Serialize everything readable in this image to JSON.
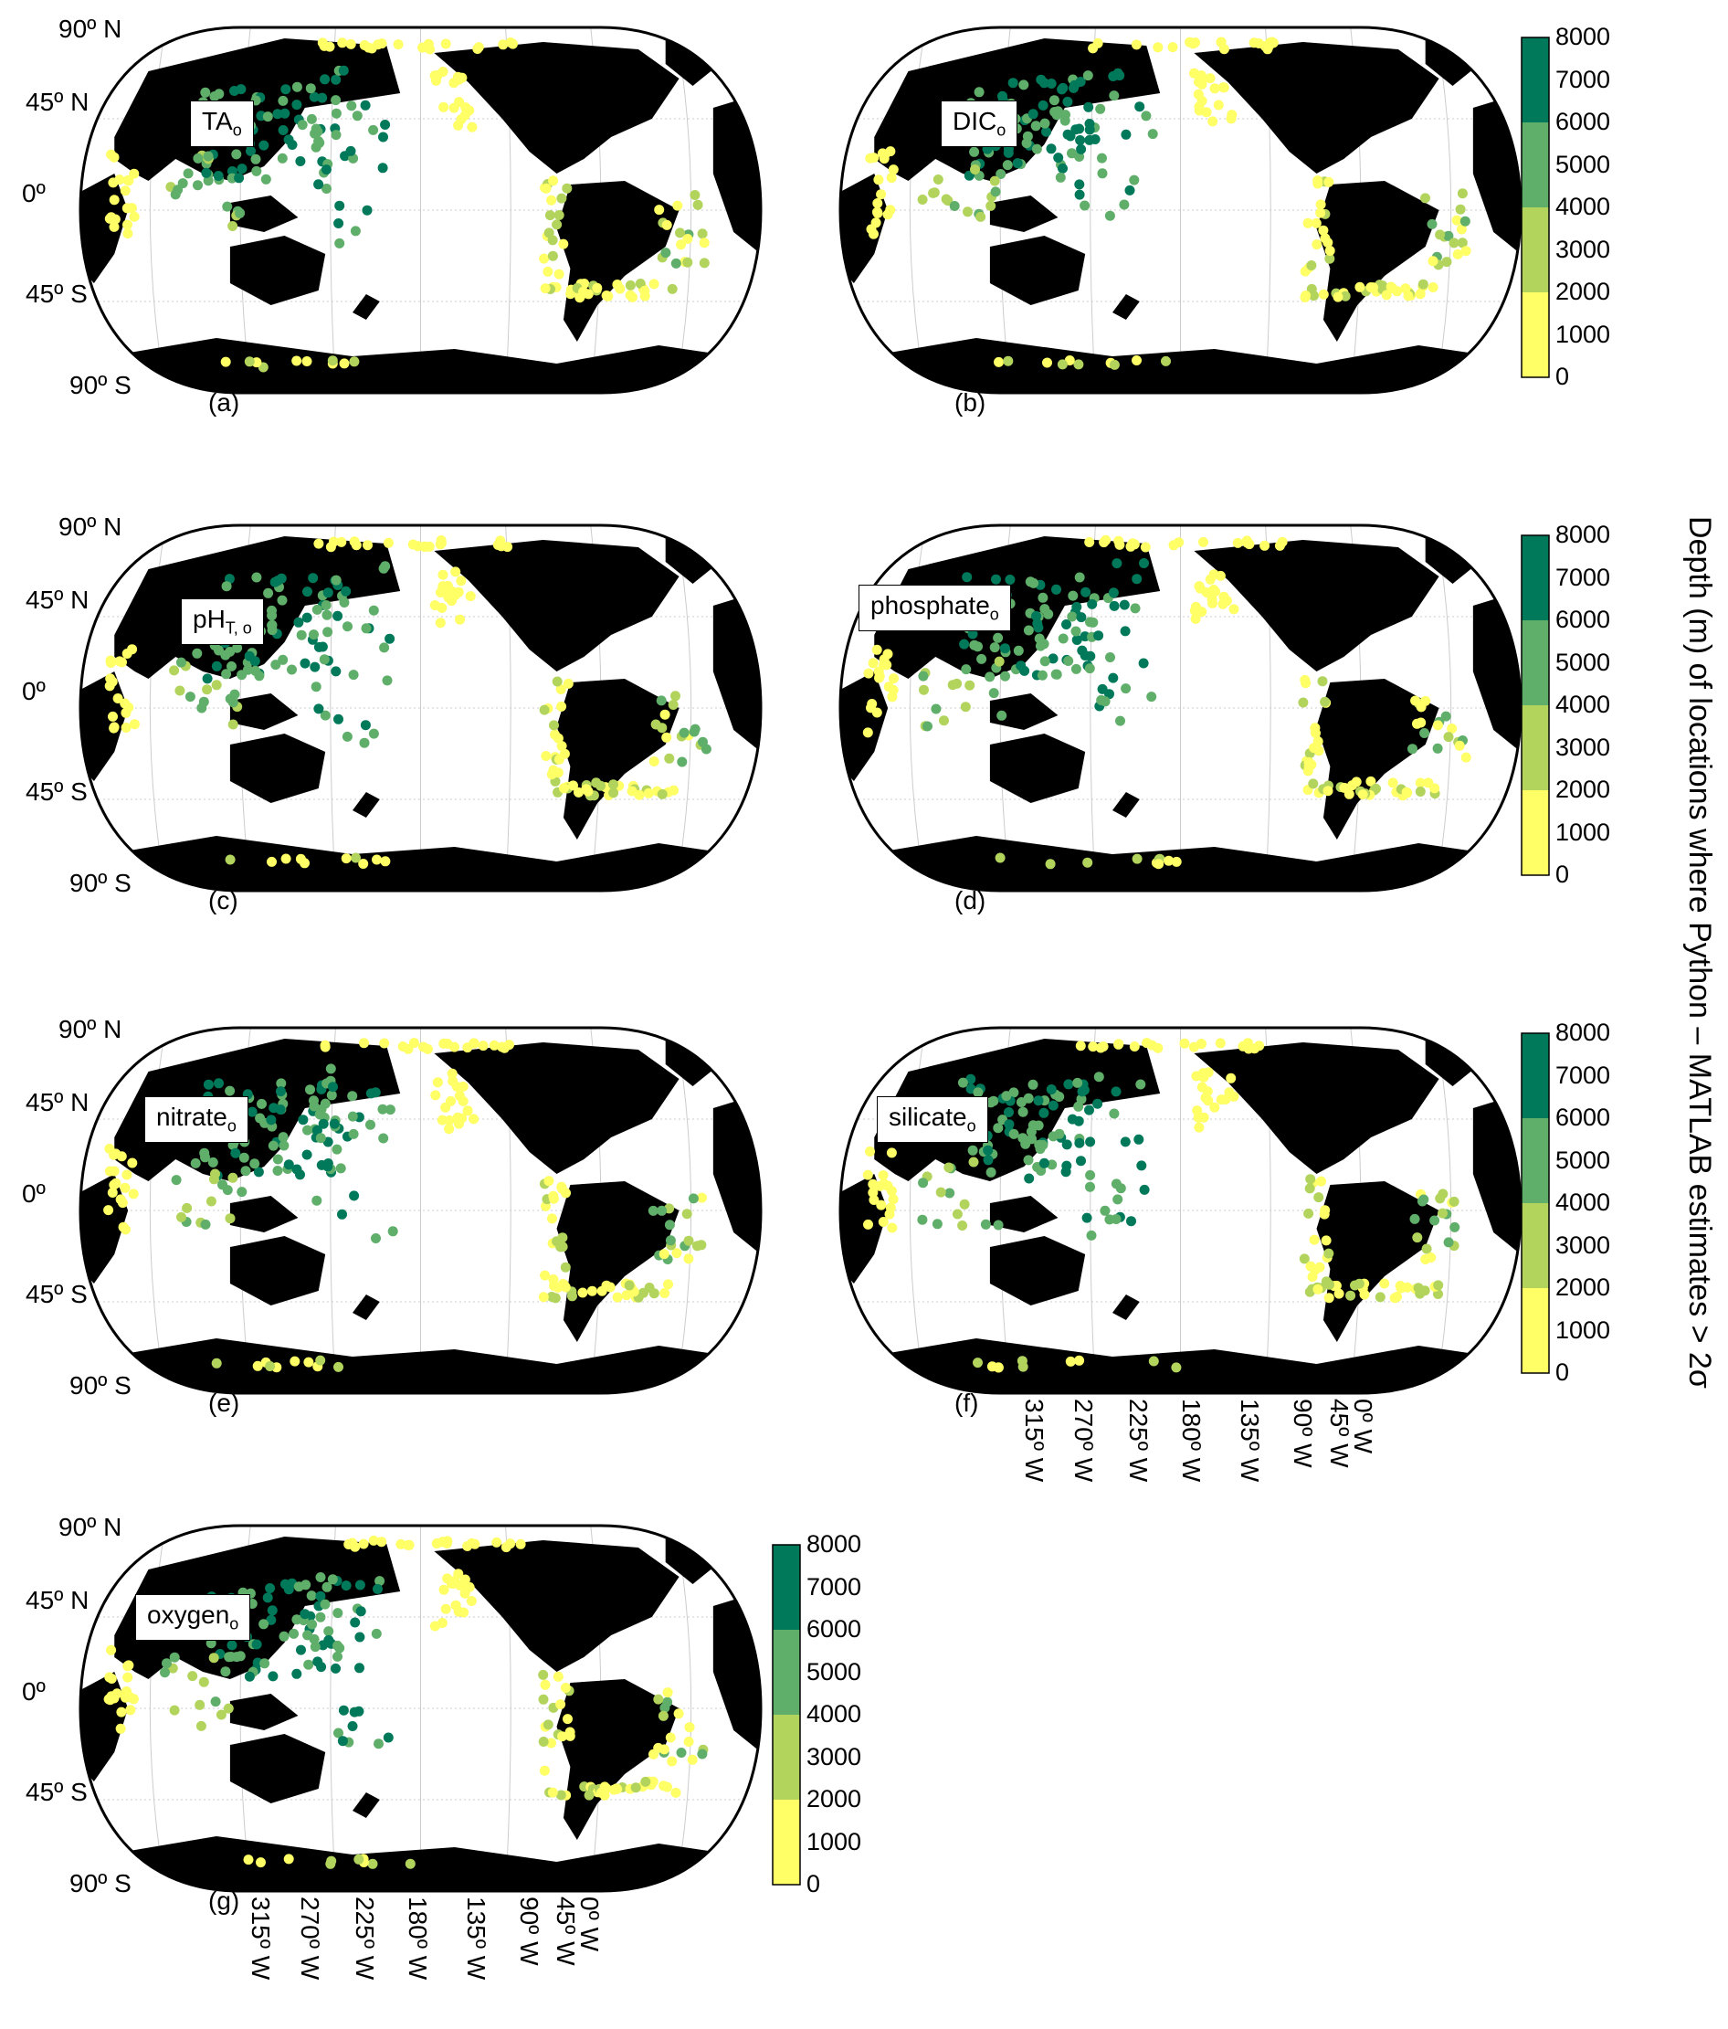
{
  "lat_labels": [
    "90º N",
    "45º N",
    "0º",
    "45º S",
    "90º S"
  ],
  "lon_labels": [
    "315º W",
    "270º W",
    "225º W",
    "180º W",
    "135º W",
    "90º W",
    "45º W",
    "0º W"
  ],
  "colorbar": {
    "ticks": [
      "8000",
      "7000",
      "6000",
      "5000",
      "4000",
      "3000",
      "2000",
      "1000",
      "0"
    ],
    "bands": [
      {
        "range": [
          0,
          2000
        ],
        "color": "#ffff66"
      },
      {
        "range": [
          2000,
          4000
        ],
        "color": "#b2d45c"
      },
      {
        "range": [
          4000,
          6000
        ],
        "color": "#5fae69"
      },
      {
        "range": [
          6000,
          8000
        ],
        "color": "#00795a"
      }
    ]
  },
  "side_label": "Depth (m) of locations where Python – MATLAB estimates > 2σ",
  "colors": {
    "land": "#000000",
    "ocean": "#ffffff",
    "grid": "#cccccc"
  },
  "panels": [
    {
      "letter": "(a)",
      "var": "TA",
      "sub": "o"
    },
    {
      "letter": "(b)",
      "var": "DIC",
      "sub": "o"
    },
    {
      "letter": "(c)",
      "var": "pH",
      "sub": "T, o"
    },
    {
      "letter": "(d)",
      "var": "phosphate",
      "sub": "o"
    },
    {
      "letter": "(e)",
      "var": "nitrate",
      "sub": "o"
    },
    {
      "letter": "(f)",
      "var": "silicate",
      "sub": "o"
    },
    {
      "letter": "(g)",
      "var": "oxygen",
      "sub": "o"
    }
  ]
}
